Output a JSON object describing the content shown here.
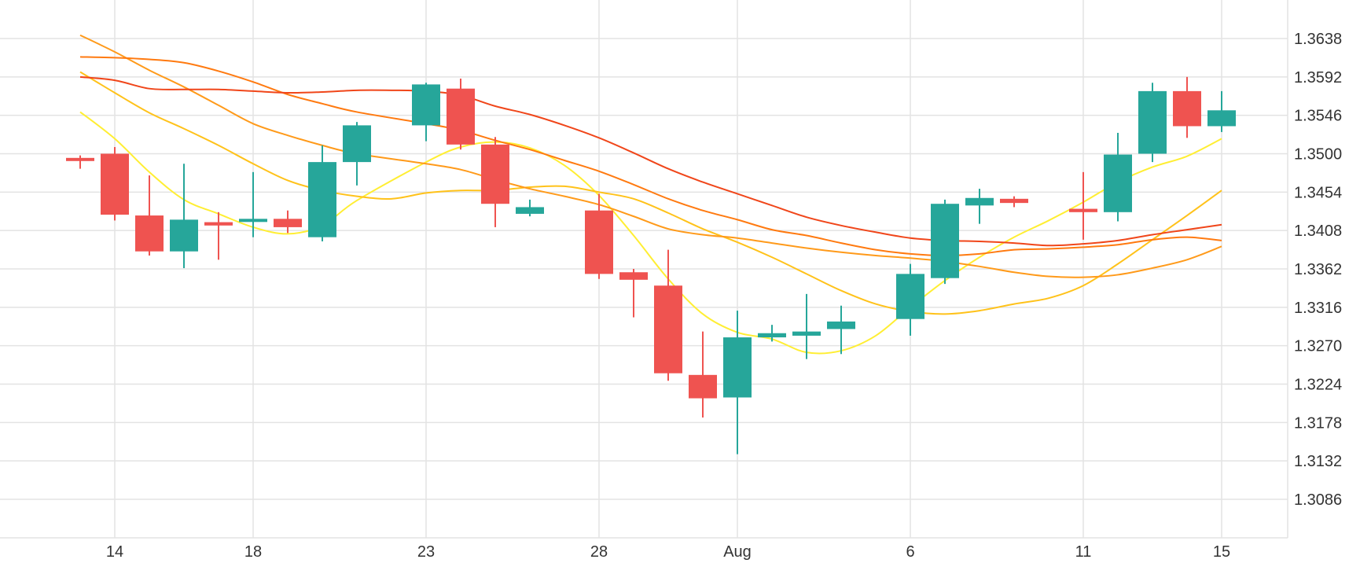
{
  "chart_data": {
    "type": "candlestick",
    "x_ticks": [
      "14",
      "18",
      "23",
      "28",
      "Aug",
      "6",
      "11",
      "15"
    ],
    "y_ticks": [
      "1.3638",
      "1.3592",
      "1.3546",
      "1.3500",
      "1.3454",
      "1.3408",
      "1.3362",
      "1.3316",
      "1.3270",
      "1.3224",
      "1.3178",
      "1.3132",
      "1.3086"
    ],
    "x_range": [
      "Jul 12",
      "Aug 16"
    ],
    "ylim": [
      1.304,
      1.367
    ],
    "grid": true,
    "y_axis_position": "right",
    "colors": {
      "up": "#26a69a",
      "down": "#ef5350",
      "grid": "#e3e3e3"
    },
    "candles": [
      {
        "date": "Jul 13",
        "open": 1.3495,
        "high": 1.3498,
        "low": 1.3482,
        "close": 1.3493
      },
      {
        "date": "Jul 14",
        "open": 1.35,
        "high": 1.3508,
        "low": 1.342,
        "close": 1.3427
      },
      {
        "date": "Jul 15",
        "open": 1.3426,
        "high": 1.3474,
        "low": 1.3378,
        "close": 1.3383
      },
      {
        "date": "Jul 16",
        "open": 1.3383,
        "high": 1.3488,
        "low": 1.3363,
        "close": 1.3421
      },
      {
        "date": "Jul 17",
        "open": 1.3418,
        "high": 1.343,
        "low": 1.3373,
        "close": 1.3414
      },
      {
        "date": "Jul 18",
        "open": 1.342,
        "high": 1.3478,
        "low": 1.34,
        "close": 1.3422
      },
      {
        "date": "Jul 19",
        "open": 1.3422,
        "high": 1.3432,
        "low": 1.3405,
        "close": 1.3412
      },
      {
        "date": "Jul 20",
        "open": 1.34,
        "high": 1.351,
        "low": 1.3395,
        "close": 1.349
      },
      {
        "date": "Jul 21",
        "open": 1.349,
        "high": 1.3538,
        "low": 1.3462,
        "close": 1.3534
      },
      {
        "date": "Jul 23",
        "open": 1.3534,
        "high": 1.3585,
        "low": 1.3515,
        "close": 1.3583
      },
      {
        "date": "Jul 24",
        "open": 1.3578,
        "high": 1.359,
        "low": 1.3505,
        "close": 1.3511
      },
      {
        "date": "Jul 25",
        "open": 1.3511,
        "high": 1.352,
        "low": 1.3412,
        "close": 1.344
      },
      {
        "date": "Jul 26",
        "open": 1.3428,
        "high": 1.3445,
        "low": 1.3425,
        "close": 1.3436
      },
      {
        "date": "Jul 28",
        "open": 1.3432,
        "high": 1.3452,
        "low": 1.335,
        "close": 1.3356
      },
      {
        "date": "Jul 29",
        "open": 1.3358,
        "high": 1.3362,
        "low": 1.3304,
        "close": 1.3349
      },
      {
        "date": "Jul 30",
        "open": 1.3342,
        "high": 1.3385,
        "low": 1.3228,
        "close": 1.3237
      },
      {
        "date": "Jul 31",
        "open": 1.3235,
        "high": 1.3287,
        "low": 1.3184,
        "close": 1.3207
      },
      {
        "date": "Aug 1",
        "open": 1.3208,
        "high": 1.3312,
        "low": 1.314,
        "close": 1.328
      },
      {
        "date": "Aug 2",
        "open": 1.328,
        "high": 1.3295,
        "low": 1.3275,
        "close": 1.3285
      },
      {
        "date": "Aug 3",
        "open": 1.3282,
        "high": 1.3332,
        "low": 1.3254,
        "close": 1.3287
      },
      {
        "date": "Aug 4",
        "open": 1.329,
        "high": 1.3318,
        "low": 1.326,
        "close": 1.3299
      },
      {
        "date": "Aug 6",
        "open": 1.3302,
        "high": 1.3368,
        "low": 1.3282,
        "close": 1.3356
      },
      {
        "date": "Aug 7",
        "open": 1.3351,
        "high": 1.3445,
        "low": 1.3344,
        "close": 1.344
      },
      {
        "date": "Aug 8",
        "open": 1.3438,
        "high": 1.3458,
        "low": 1.3416,
        "close": 1.3447
      },
      {
        "date": "Aug 9",
        "open": 1.3446,
        "high": 1.3449,
        "low": 1.3436,
        "close": 1.3441
      },
      {
        "date": "Aug 11",
        "open": 1.3434,
        "high": 1.3478,
        "low": 1.3397,
        "close": 1.343
      },
      {
        "date": "Aug 12",
        "open": 1.343,
        "high": 1.3525,
        "low": 1.3419,
        "close": 1.3499
      },
      {
        "date": "Aug 13",
        "open": 1.35,
        "high": 1.3585,
        "low": 1.349,
        "close": 1.3575
      },
      {
        "date": "Aug 14",
        "open": 1.3575,
        "high": 1.3592,
        "low": 1.3519,
        "close": 1.3533
      },
      {
        "date": "Aug 15",
        "open": 1.3533,
        "high": 1.3575,
        "low": 1.3526,
        "close": 1.3552
      }
    ],
    "indicator_lines": [
      {
        "color": "#ffee33",
        "points": [
          [
            "Jul 13",
            1.355
          ],
          [
            "Jul 14",
            1.3518
          ],
          [
            "Jul 15",
            1.3478
          ],
          [
            "Jul 16",
            1.3445
          ],
          [
            "Jul 17",
            1.3428
          ],
          [
            "Jul 18",
            1.3412
          ],
          [
            "Jul 19",
            1.3404
          ],
          [
            "Jul 20",
            1.3414
          ],
          [
            "Jul 21",
            1.3444
          ],
          [
            "Jul 23",
            1.349
          ],
          [
            "Jul 24",
            1.3508
          ],
          [
            "Jul 25",
            1.3514
          ],
          [
            "Jul 26",
            1.3507
          ],
          [
            "Jul 27",
            1.3486
          ],
          [
            "Jul 28",
            1.345
          ],
          [
            "Jul 29",
            1.3402
          ],
          [
            "Jul 30",
            1.335
          ],
          [
            "Jul 31",
            1.3308
          ],
          [
            "Aug 1",
            1.3286
          ],
          [
            "Aug 2",
            1.3278
          ],
          [
            "Aug 3",
            1.3262
          ],
          [
            "Aug 4",
            1.3264
          ],
          [
            "Aug 5",
            1.3282
          ],
          [
            "Aug 6",
            1.3316
          ],
          [
            "Aug 7",
            1.3348
          ],
          [
            "Aug 8",
            1.3376
          ],
          [
            "Aug 9",
            1.34
          ],
          [
            "Aug 10",
            1.342
          ],
          [
            "Aug 11",
            1.3442
          ],
          [
            "Aug 12",
            1.3466
          ],
          [
            "Aug 13",
            1.3484
          ],
          [
            "Aug 14",
            1.3497
          ],
          [
            "Aug 15",
            1.3518
          ]
        ]
      },
      {
        "color": "#ffc21a",
        "points": [
          [
            "Jul 13",
            1.3598
          ],
          [
            "Jul 14",
            1.3573
          ],
          [
            "Jul 15",
            1.3549
          ],
          [
            "Jul 16",
            1.353
          ],
          [
            "Jul 17",
            1.351
          ],
          [
            "Jul 18",
            1.3488
          ],
          [
            "Jul 19",
            1.3468
          ],
          [
            "Jul 20",
            1.3456
          ],
          [
            "Jul 21",
            1.3449
          ],
          [
            "Jul 22",
            1.3446
          ],
          [
            "Jul 23",
            1.3453
          ],
          [
            "Jul 24",
            1.3456
          ],
          [
            "Jul 25",
            1.3456
          ],
          [
            "Jul 26",
            1.346
          ],
          [
            "Jul 27",
            1.3461
          ],
          [
            "Jul 28",
            1.3454
          ],
          [
            "Jul 29",
            1.3446
          ],
          [
            "Jul 30",
            1.3429
          ],
          [
            "Jul 31",
            1.341
          ],
          [
            "Aug 1",
            1.3394
          ],
          [
            "Aug 2",
            1.3376
          ],
          [
            "Aug 3",
            1.3356
          ],
          [
            "Aug 4",
            1.3336
          ],
          [
            "Aug 5",
            1.332
          ],
          [
            "Aug 6",
            1.3311
          ],
          [
            "Aug 7",
            1.3308
          ],
          [
            "Aug 8",
            1.3312
          ],
          [
            "Aug 9",
            1.332
          ],
          [
            "Aug 10",
            1.3327
          ],
          [
            "Aug 11",
            1.3342
          ],
          [
            "Aug 12",
            1.3368
          ],
          [
            "Aug 13",
            1.3397
          ],
          [
            "Aug 14",
            1.3426
          ],
          [
            "Aug 15",
            1.3456
          ]
        ]
      },
      {
        "color": "#ff9a1a",
        "points": [
          [
            "Jul 13",
            1.3642
          ],
          [
            "Jul 14",
            1.3622
          ],
          [
            "Jul 15",
            1.36
          ],
          [
            "Jul 16",
            1.358
          ],
          [
            "Jul 17",
            1.3558
          ],
          [
            "Jul 18",
            1.3536
          ],
          [
            "Jul 19",
            1.3522
          ],
          [
            "Jul 20",
            1.351
          ],
          [
            "Jul 21",
            1.35
          ],
          [
            "Jul 23",
            1.3488
          ],
          [
            "Jul 24",
            1.3481
          ],
          [
            "Jul 25",
            1.3469
          ],
          [
            "Jul 26",
            1.3458
          ],
          [
            "Jul 27",
            1.3449
          ],
          [
            "Jul 28",
            1.3439
          ],
          [
            "Jul 29",
            1.3425
          ],
          [
            "Jul 30",
            1.341
          ],
          [
            "Jul 31",
            1.3403
          ],
          [
            "Aug 1",
            1.3399
          ],
          [
            "Aug 2",
            1.3393
          ],
          [
            "Aug 3",
            1.3387
          ],
          [
            "Aug 4",
            1.3382
          ],
          [
            "Aug 5",
            1.3378
          ],
          [
            "Aug 6",
            1.3375
          ],
          [
            "Aug 7",
            1.3371
          ],
          [
            "Aug 8",
            1.3365
          ],
          [
            "Aug 9",
            1.3358
          ],
          [
            "Aug 10",
            1.3353
          ],
          [
            "Aug 11",
            1.3352
          ],
          [
            "Aug 12",
            1.3355
          ],
          [
            "Aug 13",
            1.3363
          ],
          [
            "Aug 14",
            1.3373
          ],
          [
            "Aug 15",
            1.3389
          ]
        ]
      },
      {
        "color": "#ff7a10",
        "points": [
          [
            "Jul 13",
            1.3616
          ],
          [
            "Jul 14",
            1.3615
          ],
          [
            "Jul 15",
            1.3613
          ],
          [
            "Jul 16",
            1.3609
          ],
          [
            "Jul 17",
            1.3599
          ],
          [
            "Jul 18",
            1.3586
          ],
          [
            "Jul 19",
            1.3571
          ],
          [
            "Jul 20",
            1.356
          ],
          [
            "Jul 21",
            1.355
          ],
          [
            "Jul 23",
            1.3536
          ],
          [
            "Jul 24",
            1.3528
          ],
          [
            "Jul 25",
            1.3516
          ],
          [
            "Jul 26",
            1.3505
          ],
          [
            "Jul 27",
            1.3492
          ],
          [
            "Jul 28",
            1.3479
          ],
          [
            "Jul 29",
            1.3463
          ],
          [
            "Jul 30",
            1.3446
          ],
          [
            "Jul 31",
            1.3432
          ],
          [
            "Aug 1",
            1.3421
          ],
          [
            "Aug 2",
            1.3409
          ],
          [
            "Aug 3",
            1.3402
          ],
          [
            "Aug 4",
            1.3393
          ],
          [
            "Aug 5",
            1.3385
          ],
          [
            "Aug 6",
            1.338
          ],
          [
            "Aug 7",
            1.3378
          ],
          [
            "Aug 8",
            1.338
          ],
          [
            "Aug 9",
            1.3385
          ],
          [
            "Aug 10",
            1.3386
          ],
          [
            "Aug 11",
            1.3388
          ],
          [
            "Aug 12",
            1.3391
          ],
          [
            "Aug 13",
            1.3397
          ],
          [
            "Aug 14",
            1.34
          ],
          [
            "Aug 15",
            1.3396
          ]
        ]
      },
      {
        "color": "#f0461a",
        "points": [
          [
            "Jul 13",
            1.3592
          ],
          [
            "Jul 14",
            1.3588
          ],
          [
            "Jul 15",
            1.3578
          ],
          [
            "Jul 16",
            1.3577
          ],
          [
            "Jul 17",
            1.3577
          ],
          [
            "Jul 18",
            1.3575
          ],
          [
            "Jul 19",
            1.3573
          ],
          [
            "Jul 20",
            1.3574
          ],
          [
            "Jul 21",
            1.3576
          ],
          [
            "Jul 22",
            1.3576
          ],
          [
            "Jul 23",
            1.3575
          ],
          [
            "Jul 24",
            1.357
          ],
          [
            "Jul 25",
            1.3557
          ],
          [
            "Jul 26",
            1.3547
          ],
          [
            "Jul 27",
            1.3534
          ],
          [
            "Jul 28",
            1.3519
          ],
          [
            "Jul 29",
            1.3501
          ],
          [
            "Jul 30",
            1.3482
          ],
          [
            "Jul 31",
            1.3466
          ],
          [
            "Aug 1",
            1.3452
          ],
          [
            "Aug 2",
            1.3438
          ],
          [
            "Aug 3",
            1.3424
          ],
          [
            "Aug 4",
            1.3414
          ],
          [
            "Aug 5",
            1.3406
          ],
          [
            "Aug 6",
            1.3399
          ],
          [
            "Aug 7",
            1.3396
          ],
          [
            "Aug 8",
            1.3395
          ],
          [
            "Aug 9",
            1.3393
          ],
          [
            "Aug 10",
            1.339
          ],
          [
            "Aug 11",
            1.3392
          ],
          [
            "Aug 12",
            1.3396
          ],
          [
            "Aug 13",
            1.3403
          ],
          [
            "Aug 14",
            1.3409
          ],
          [
            "Aug 15",
            1.3415
          ]
        ]
      }
    ]
  }
}
